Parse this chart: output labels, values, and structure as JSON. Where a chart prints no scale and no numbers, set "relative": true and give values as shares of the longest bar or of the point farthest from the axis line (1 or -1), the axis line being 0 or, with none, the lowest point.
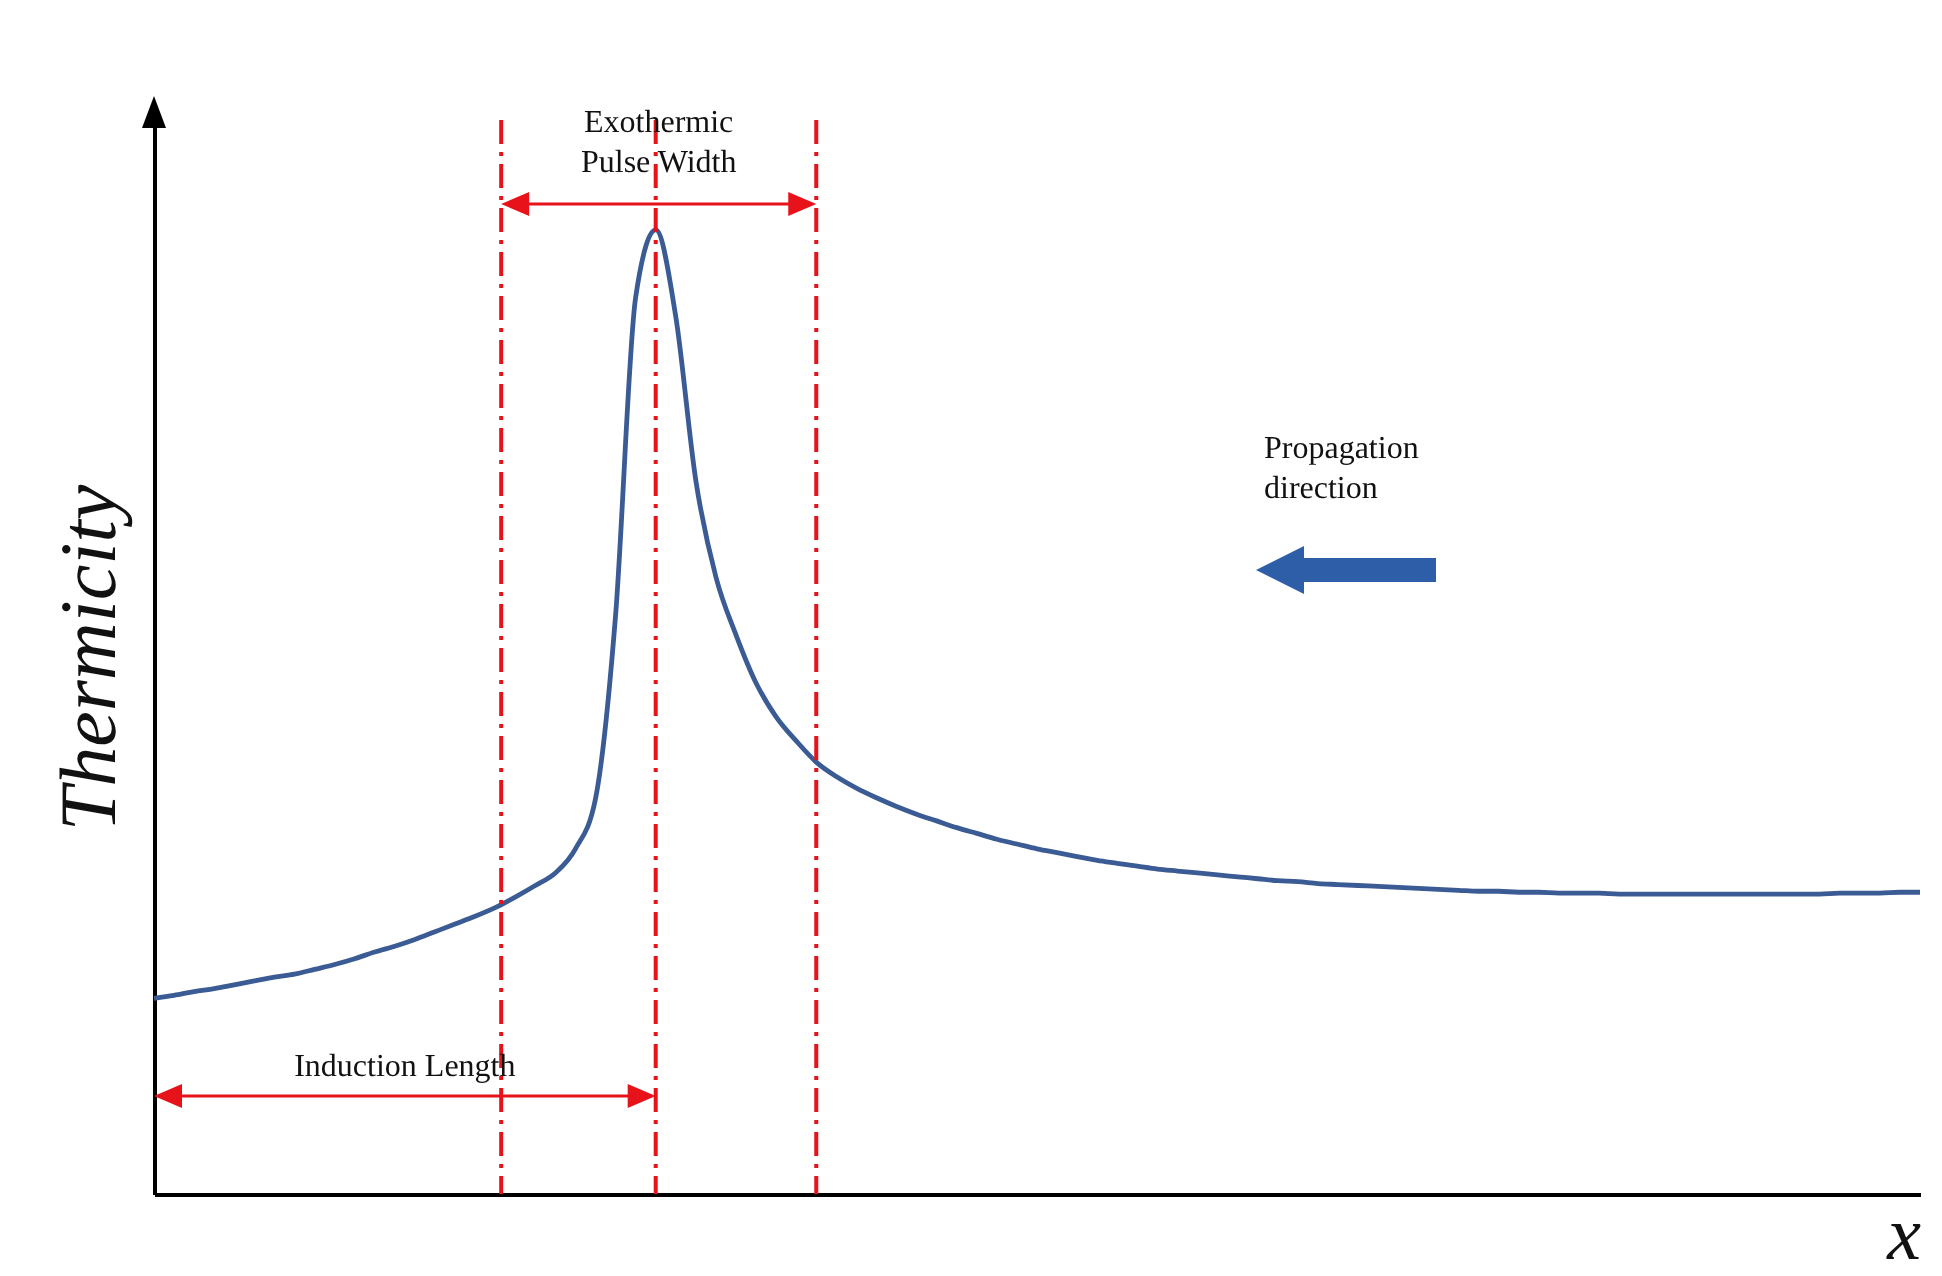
{
  "chart_data": {
    "type": "line",
    "relative": true,
    "xlabel": "x",
    "ylabel": "Thermicity",
    "color": "#3b5b95",
    "grid": false,
    "tick_labels": false,
    "categories": [
      null,
      null,
      null,
      null,
      null,
      null,
      null,
      null,
      null,
      null,
      null,
      null,
      null,
      null,
      null,
      null,
      null,
      null,
      null,
      null,
      null,
      null,
      null,
      null,
      null,
      null,
      null,
      null,
      null,
      null,
      null,
      null,
      null,
      null,
      null,
      null,
      null,
      null,
      null,
      null,
      null,
      null,
      null,
      null,
      null,
      null,
      null,
      null,
      null,
      null,
      null,
      null,
      null,
      null,
      null,
      null,
      null,
      null,
      null,
      null,
      null,
      null,
      null,
      null,
      null,
      null,
      null,
      null,
      null,
      null,
      null,
      null,
      null,
      null,
      null,
      null,
      null,
      null,
      null,
      null,
      null,
      null,
      null,
      null,
      null,
      null,
      null,
      null,
      null
    ],
    "values": [
      0.203,
      0.206,
      0.21,
      0.213,
      0.217,
      0.221,
      0.225,
      0.228,
      0.233,
      0.238,
      0.244,
      0.251,
      0.257,
      0.264,
      0.272,
      0.28,
      0.288,
      0.297,
      0.308,
      0.32,
      0.333,
      0.358,
      0.41,
      0.6,
      0.93,
      1,
      0.91,
      0.74,
      0.64,
      0.58,
      0.53,
      0.495,
      0.47,
      0.448,
      0.433,
      0.421,
      0.411,
      0.402,
      0.394,
      0.387,
      0.38,
      0.374,
      0.368,
      0.363,
      0.358,
      0.354,
      0.35,
      0.346,
      0.343,
      0.34,
      0.337,
      0.335,
      0.333,
      0.331,
      0.329,
      0.327,
      0.325,
      0.324,
      0.322,
      0.321,
      0.32,
      0.319,
      0.318,
      0.317,
      0.316,
      0.315,
      0.314,
      0.314,
      0.313,
      0.313,
      0.312,
      0.312,
      0.312,
      0.311,
      0.311,
      0.311,
      0.311,
      0.311,
      0.311,
      0.311,
      0.311,
      0.311,
      0.311,
      0.311,
      0.312,
      0.312,
      0.312,
      0.313,
      0.313
    ],
    "annotations": [
      "Exothermic Pulse Width",
      "Induction Length",
      "Propagation direction"
    ]
  }
}
